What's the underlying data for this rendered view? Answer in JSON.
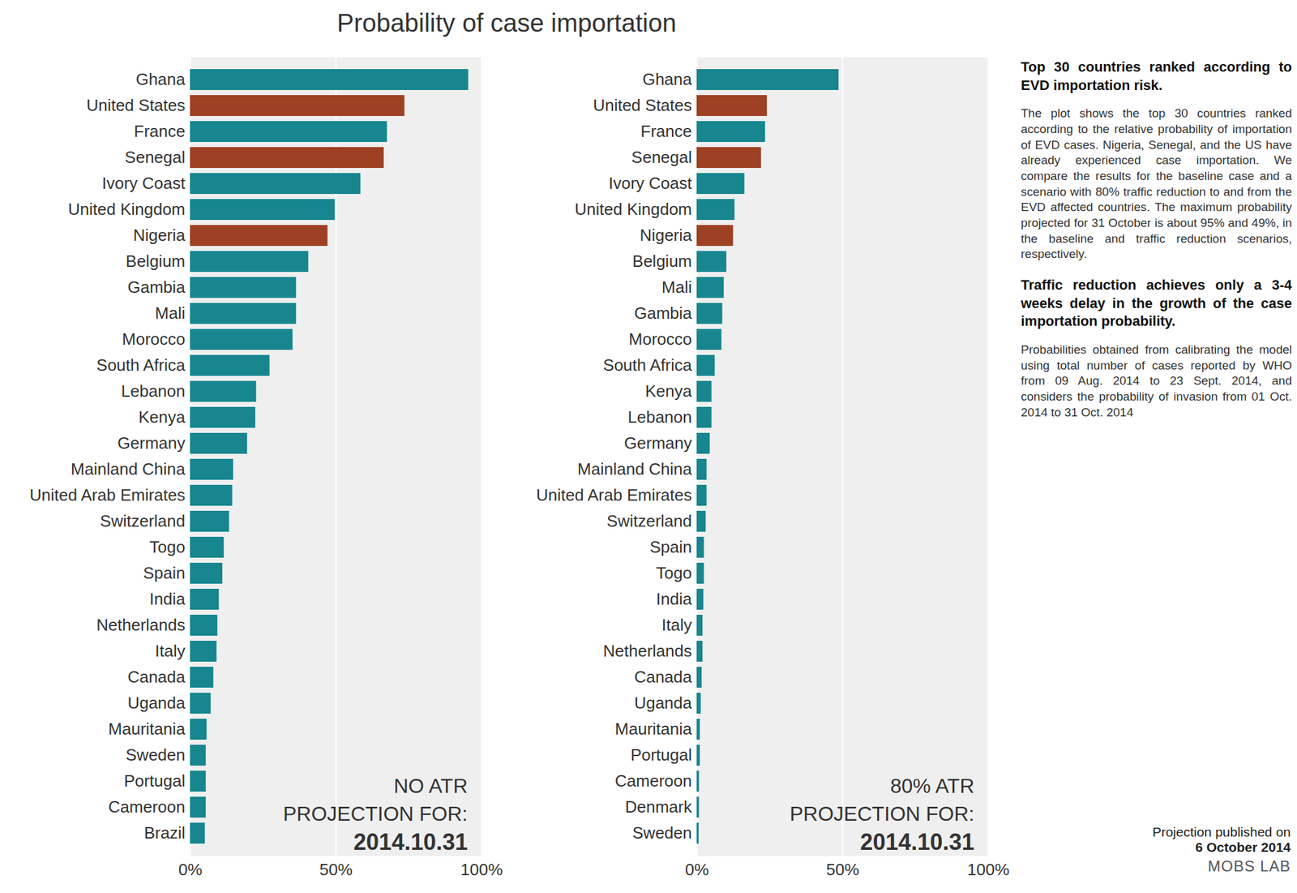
{
  "title": "Probability of case importation",
  "sidebar": {
    "heading": "Top 30 countries ranked according to EVD importation risk.",
    "text": "The plot shows the top 30 countries ranked according to the relative probability of importation of EVD cases. Nigeria, Senegal, and the US have already experienced case importation. We compare the results for the baseline case and a scenario with 80% traffic reduction to and from the EVD affected countries. The maximum probability projected for 31 October is about 95% and 49%, in the baseline and traffic reduction scenarios, respectively.",
    "highlight": "Traffic reduction achieves only a 3-4 weeks delay in the growth of the case importation probability.",
    "note": "Probabilities obtained from calibrating the model using total number of cases reported by WHO from 09 Aug. 2014 to 23 Sept. 2014, and considers the probability of invasion from 01 Oct. 2014 to 31 Oct. 2014"
  },
  "footer": [
    "Projection published on",
    "6 October 2014",
    "MOBS LAB"
  ],
  "chart_data": [
    {
      "type": "bar",
      "orientation": "horizontal",
      "grid": true,
      "annotations": [
        "NO ATR",
        "PROJECTION FOR:",
        "2014.10.31"
      ],
      "categories": [
        "Ghana",
        "United States",
        "France",
        "Senegal",
        "Ivory Coast",
        "United Kingdom",
        "Nigeria",
        "Belgium",
        "Gambia",
        "Mali",
        "Morocco",
        "South Africa",
        "Lebanon",
        "Kenya",
        "Germany",
        "Mainland China",
        "United Arab Emirates",
        "Switzerland",
        "Togo",
        "Spain",
        "India",
        "Netherlands",
        "Italy",
        "Canada",
        "Uganda",
        "Mauritania",
        "Sweden",
        "Portugal",
        "Cameroon",
        "Brazil"
      ],
      "values": [
        95.5,
        73.6,
        67.6,
        66.5,
        58.5,
        49.7,
        47.2,
        40.6,
        36.4,
        36.4,
        35.2,
        27.3,
        22.7,
        22.4,
        19.6,
        14.8,
        14.5,
        13.4,
        11.6,
        11.1,
        9.9,
        9.4,
        9.1,
        8.0,
        7.1,
        5.7,
        5.4,
        5.4,
        5.4,
        5.1
      ],
      "colors": [
        "#17868f",
        "#9e4023",
        "#17868f",
        "#9e4023",
        "#17868f",
        "#17868f",
        "#9e4023",
        "#17868f",
        "#17868f",
        "#17868f",
        "#17868f",
        "#17868f",
        "#17868f",
        "#17868f",
        "#17868f",
        "#17868f",
        "#17868f",
        "#17868f",
        "#17868f",
        "#17868f",
        "#17868f",
        "#17868f",
        "#17868f",
        "#17868f",
        "#17868f",
        "#17868f",
        "#17868f",
        "#17868f",
        "#17868f",
        "#17868f"
      ],
      "xlim": [
        0,
        100
      ],
      "xticks": [
        {
          "value": 0,
          "label": "0%"
        },
        {
          "value": 50,
          "label": "50%"
        },
        {
          "value": 100,
          "label": "100%"
        }
      ]
    },
    {
      "type": "bar",
      "orientation": "horizontal",
      "grid": true,
      "annotations": [
        "80% ATR",
        "PROJECTION FOR:",
        "2014.10.31"
      ],
      "categories": [
        "Ghana",
        "United States",
        "France",
        "Senegal",
        "Ivory Coast",
        "United Kingdom",
        "Nigeria",
        "Belgium",
        "Mali",
        "Gambia",
        "Morocco",
        "South Africa",
        "Kenya",
        "Lebanon",
        "Germany",
        "Mainland China",
        "United Arab Emirates",
        "Switzerland",
        "Spain",
        "Togo",
        "India",
        "Italy",
        "Netherlands",
        "Canada",
        "Uganda",
        "Mauritania",
        "Portugal",
        "Cameroon",
        "Denmark",
        "Sweden"
      ],
      "values": [
        48.7,
        24.1,
        23.5,
        22.1,
        16.4,
        13.0,
        12.5,
        10.2,
        9.3,
        8.8,
        8.5,
        6.2,
        5.1,
        5.1,
        4.5,
        3.4,
        3.4,
        3.1,
        2.5,
        2.5,
        2.3,
        2.0,
        2.0,
        1.7,
        1.4,
        1.1,
        1.1,
        0.8,
        0.8,
        0.7
      ],
      "colors": [
        "#17868f",
        "#9e4023",
        "#17868f",
        "#9e4023",
        "#17868f",
        "#17868f",
        "#9e4023",
        "#17868f",
        "#17868f",
        "#17868f",
        "#17868f",
        "#17868f",
        "#17868f",
        "#17868f",
        "#17868f",
        "#17868f",
        "#17868f",
        "#17868f",
        "#17868f",
        "#17868f",
        "#17868f",
        "#17868f",
        "#17868f",
        "#17868f",
        "#17868f",
        "#17868f",
        "#17868f",
        "#17868f",
        "#17868f",
        "#17868f"
      ],
      "xlim": [
        0,
        100
      ],
      "xticks": [
        {
          "value": 0,
          "label": "0%"
        },
        {
          "value": 50,
          "label": "50%"
        },
        {
          "value": 100,
          "label": "100%"
        }
      ]
    }
  ]
}
